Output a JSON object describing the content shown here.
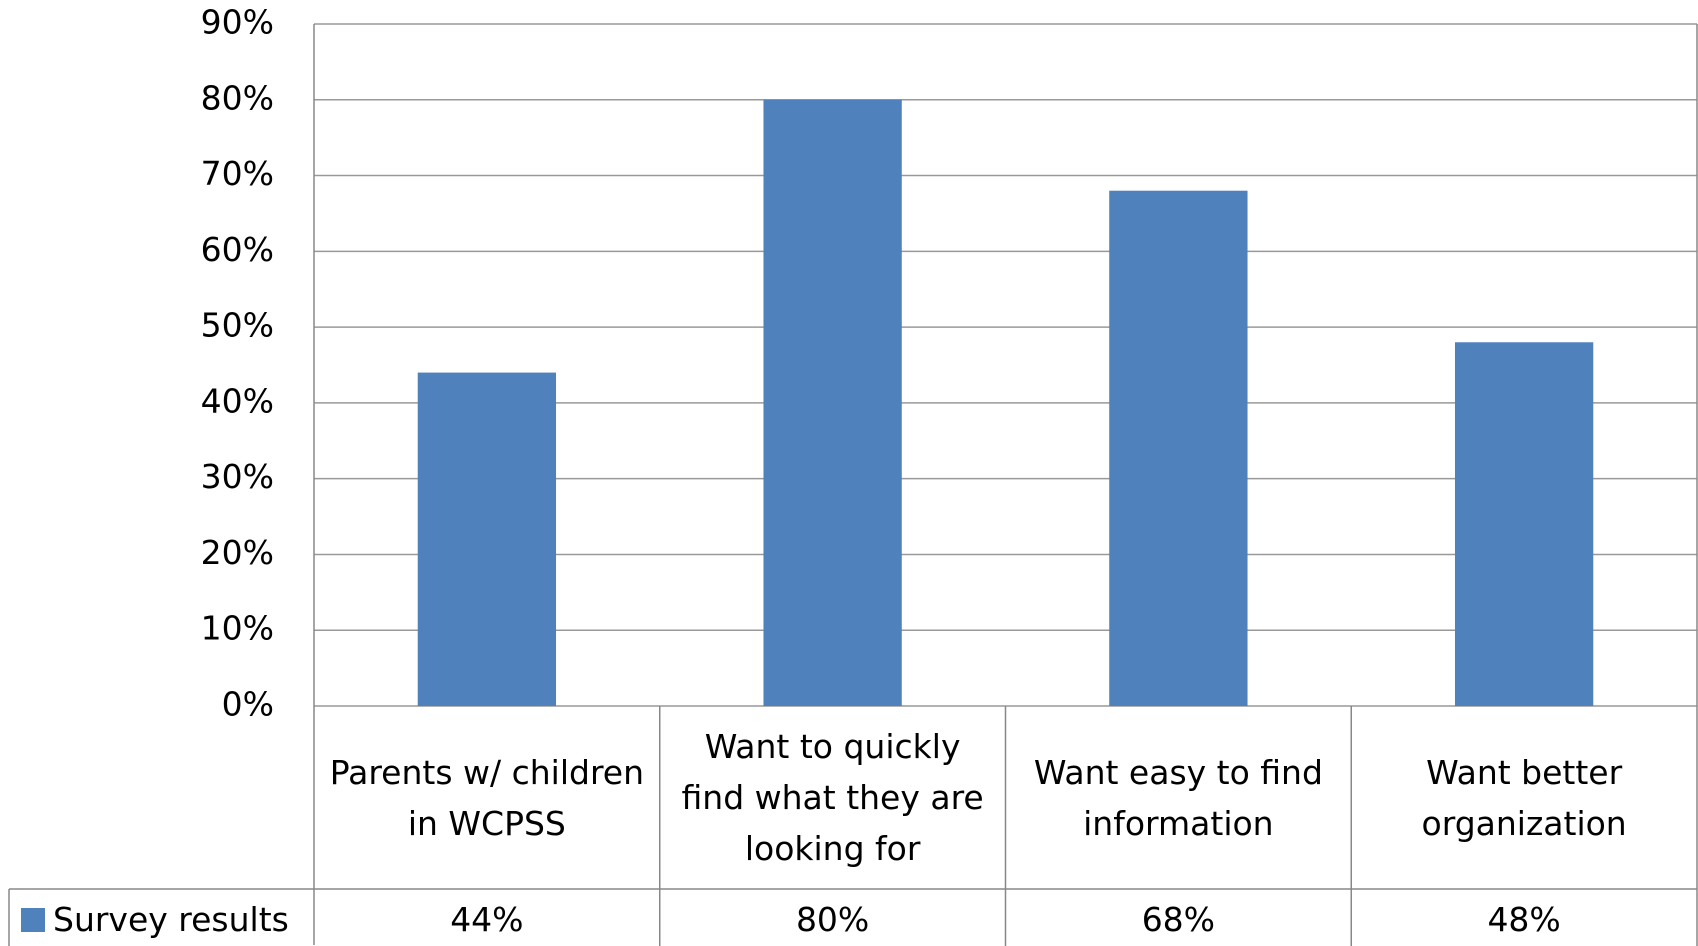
{
  "chart_data": {
    "type": "bar",
    "categories": [
      "Parents w/ children in WCPSS",
      "Want to quickly find what they are looking for",
      "Want easy to find information",
      "Want better organization"
    ],
    "series": [
      {
        "name": "Survey results",
        "color": "#4f81bd",
        "values": [
          44,
          80,
          68,
          48
        ],
        "value_labels": [
          "44%",
          "80%",
          "68%",
          "48%"
        ]
      }
    ],
    "ylim": [
      0,
      90
    ],
    "yticks": [
      {
        "value": 0,
        "label": "0%"
      },
      {
        "value": 10,
        "label": "10%"
      },
      {
        "value": 20,
        "label": "20%"
      },
      {
        "value": 30,
        "label": "30%"
      },
      {
        "value": 40,
        "label": "40%"
      },
      {
        "value": 50,
        "label": "50%"
      },
      {
        "value": 60,
        "label": "60%"
      },
      {
        "value": 70,
        "label": "70%"
      },
      {
        "value": 80,
        "label": "80%"
      },
      {
        "value": 90,
        "label": "90%"
      }
    ],
    "grid": true
  }
}
